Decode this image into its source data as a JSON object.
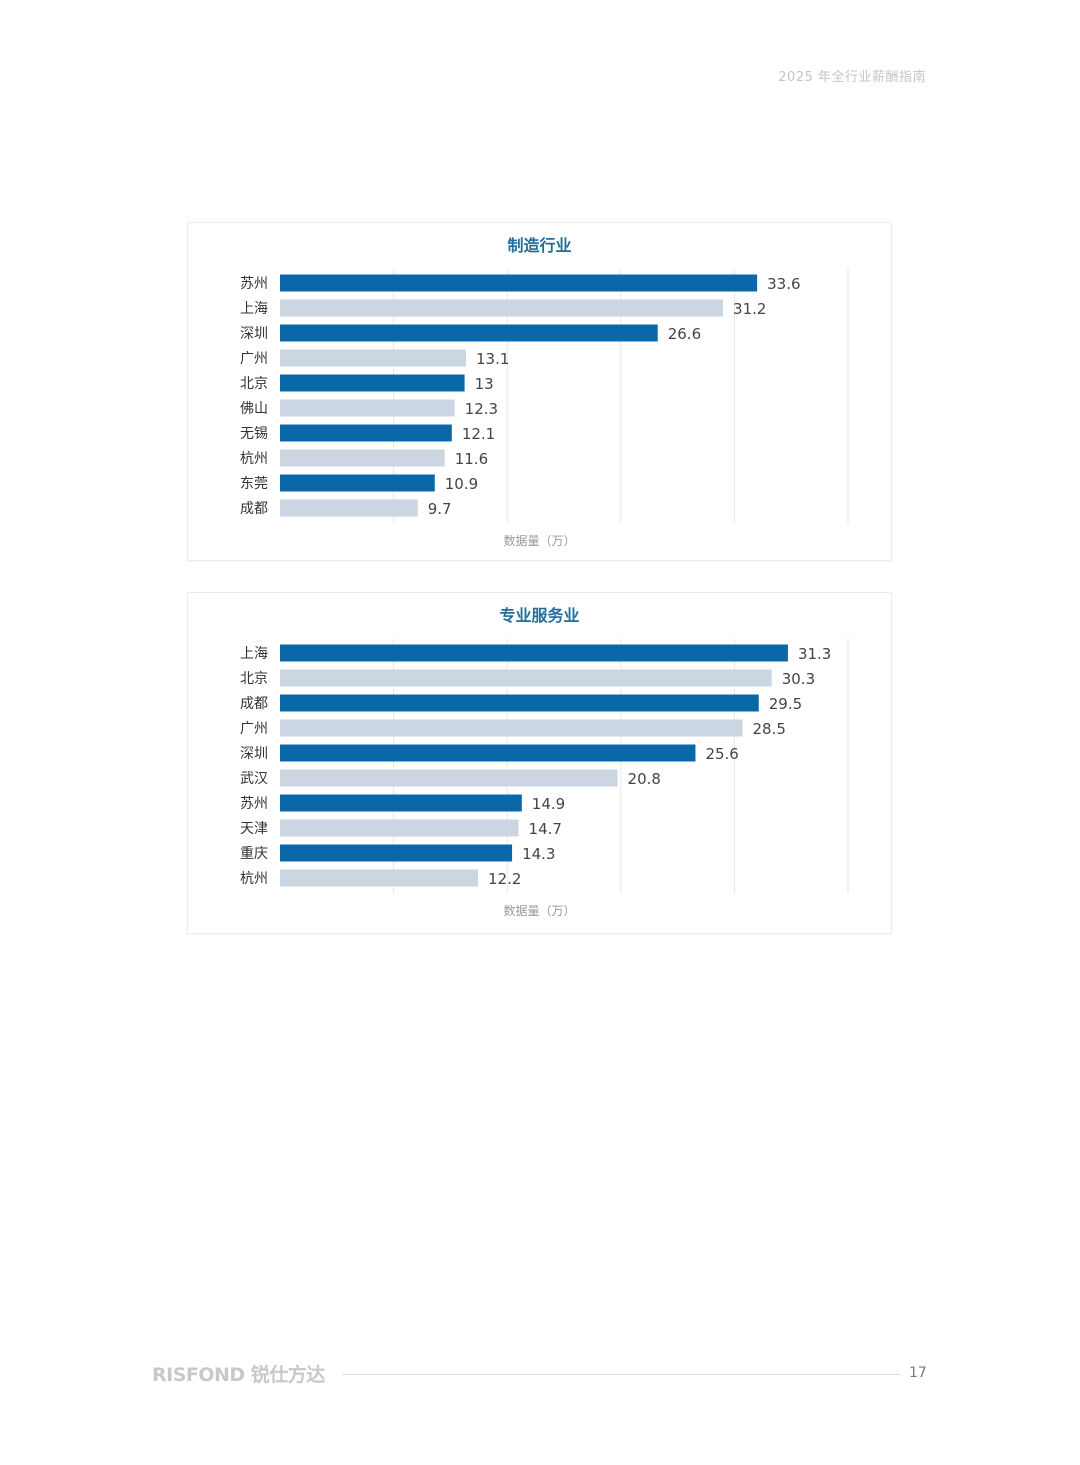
{
  "header": {
    "text": "2025 年全行业薪酬指南"
  },
  "footer": {
    "logo": "RISFOND 锐仕方达",
    "page_number": "17"
  },
  "colors": {
    "dark_bar": "#0b68a8",
    "light_bar": "#cbd6e2",
    "title": "#1f6f99",
    "grid": "#e6e6e6"
  },
  "chart_data": [
    {
      "type": "bar",
      "orientation": "horizontal",
      "title": "制造行业",
      "xlabel": "数据量（万）",
      "categories": [
        "苏州",
        "上海",
        "深圳",
        "广州",
        "北京",
        "佛山",
        "无锡",
        "杭州",
        "东莞",
        "成都"
      ],
      "values": [
        33.6,
        31.2,
        26.6,
        13.1,
        13,
        12.3,
        12.1,
        11.6,
        10.9,
        9.7
      ],
      "value_labels": [
        "33.6",
        "31.2",
        "26.6",
        "13.1",
        "13",
        "12.3",
        "12.1",
        "11.6",
        "10.9",
        "9.7"
      ],
      "bar_colors": "alternating dark/light starting dark",
      "xlim": [
        0,
        40
      ],
      "grid": true,
      "legend": "none"
    },
    {
      "type": "bar",
      "orientation": "horizontal",
      "title": "专业服务业",
      "xlabel": "数据量（万）",
      "categories": [
        "上海",
        "北京",
        "成都",
        "广州",
        "深圳",
        "武汉",
        "苏州",
        "天津",
        "重庆",
        "杭州"
      ],
      "values": [
        31.3,
        30.3,
        29.5,
        28.5,
        25.6,
        20.8,
        14.9,
        14.7,
        14.3,
        12.2
      ],
      "value_labels": [
        "31.3",
        "30.3",
        "29.5",
        "28.5",
        "25.6",
        "20.8",
        "14.9",
        "14.7",
        "14.3",
        "12.2"
      ],
      "bar_colors": "alternating dark/light starting dark",
      "xlim": [
        0,
        35
      ],
      "grid": true,
      "legend": "none"
    }
  ]
}
